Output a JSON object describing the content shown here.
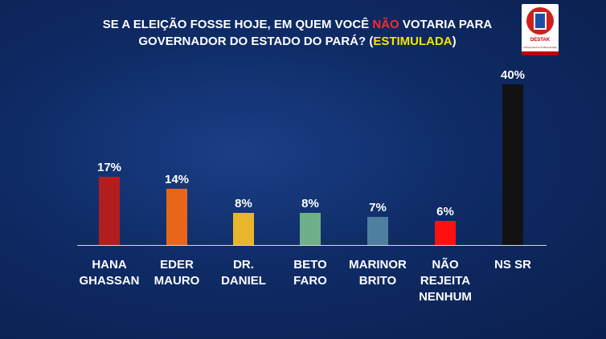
{
  "header": {
    "title_part1": "SE A ELEIÇÃO FOSSE HOJE, EM QUEM VOCÊ ",
    "title_highlight": "NÃO",
    "title_part2": " VOTARIA PARA",
    "title_line2_part1": "GOVERNADOR DO ESTADO DO PARÁ? (",
    "title_line2_highlight": "ESTIMULADA",
    "title_line2_part2": ")",
    "highlight_colors": {
      "nao": "#ff2a2a",
      "estimulada": "#f5e400"
    }
  },
  "logo": {
    "name": "DESTAK",
    "subtitle": "PESQUISAS E PUBLICIDADE",
    "colors": {
      "red": "#d01f1f",
      "blue": "#1e4fa8"
    }
  },
  "chart_data": {
    "type": "bar",
    "categories": [
      "HANA\nGHASSAN",
      "EDER\nMAURO",
      "DR.\nDANIEL",
      "BETO\nFARO",
      "MARINOR\nBRITO",
      "NÃO\nREJEITA\nNENHUM",
      "NS SR"
    ],
    "values": [
      17,
      14,
      8,
      8,
      7,
      6,
      40
    ],
    "value_labels": [
      "17%",
      "14%",
      "8%",
      "8%",
      "7%",
      "6%",
      "40%"
    ],
    "colors": [
      "#b01e1e",
      "#e8661a",
      "#e8b62a",
      "#6fb08a",
      "#4f7fa0",
      "#ff1010",
      "#121212"
    ],
    "ylim": [
      0,
      40
    ],
    "grid": false,
    "legend": "none"
  }
}
